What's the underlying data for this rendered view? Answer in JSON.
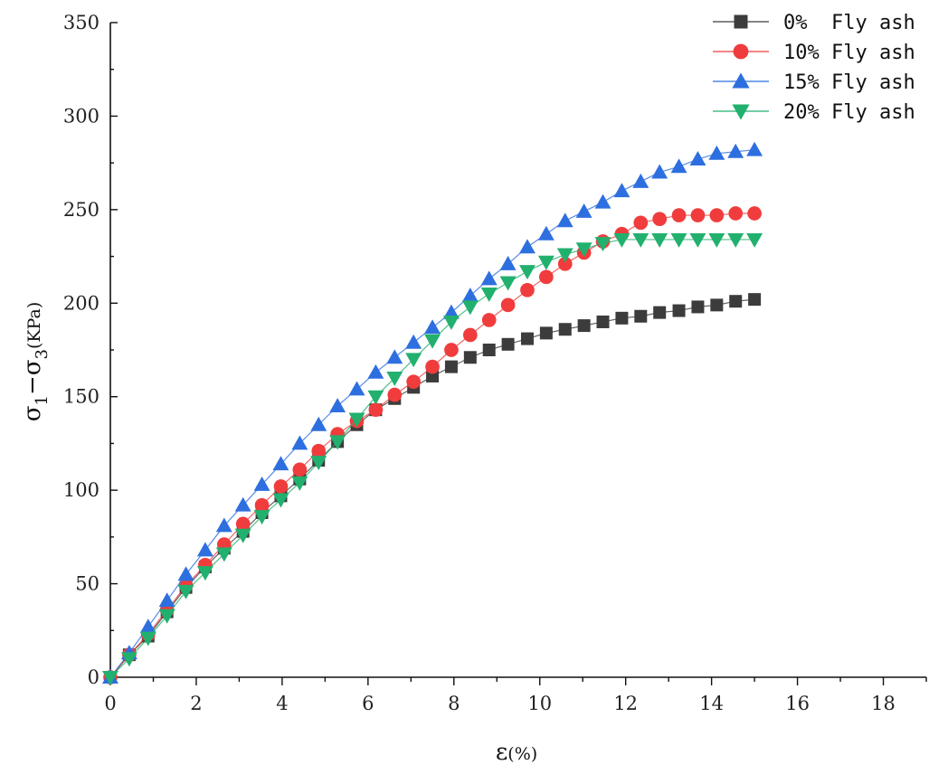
{
  "chart_data": {
    "type": "line",
    "title": "",
    "xlabel": "ε(%)",
    "ylabel": "σ1−σ3(KPa)",
    "ylabel_parts": {
      "sigma1": "σ",
      "sub1": "1",
      "dash": "−",
      "sigma3": "σ",
      "sub3": "3",
      "unit": "(KPa)"
    },
    "xlabel_parts": {
      "eps": "ε",
      "unit": "(%)"
    },
    "xlim": [
      0,
      19
    ],
    "ylim": [
      0,
      350
    ],
    "xticks": [
      0,
      2,
      4,
      6,
      8,
      10,
      12,
      14,
      16,
      18
    ],
    "yticks": [
      0,
      50,
      100,
      150,
      200,
      250,
      300,
      350
    ],
    "xtick_labels": [
      "0",
      "2",
      "4",
      "6",
      "8",
      "10",
      "12",
      "14",
      "16",
      "18"
    ],
    "ytick_labels": [
      "0",
      "50",
      "100",
      "150",
      "200",
      "250",
      "300",
      "350"
    ],
    "legend_position": "top-right",
    "grid": false,
    "x": [
      0,
      0.44,
      0.88,
      1.32,
      1.76,
      2.21,
      2.65,
      3.09,
      3.53,
      3.97,
      4.41,
      4.85,
      5.29,
      5.74,
      6.18,
      6.62,
      7.06,
      7.5,
      7.94,
      8.38,
      8.82,
      9.26,
      9.71,
      10.15,
      10.59,
      11.03,
      11.47,
      11.91,
      12.35,
      12.79,
      13.24,
      13.68,
      14.12,
      14.56,
      15
    ],
    "series": [
      {
        "name": "0%  Fly ash",
        "color": "#3c3c3c",
        "marker": "square",
        "values": [
          0,
          12,
          22,
          35,
          48,
          59,
          69,
          78,
          88,
          97,
          106,
          116,
          126,
          135,
          143,
          149,
          155,
          161,
          166,
          171,
          175,
          178,
          181,
          184,
          186,
          188,
          190,
          192,
          193,
          195,
          196,
          198,
          199,
          201,
          202
        ]
      },
      {
        "name": "10% Fly ash",
        "color": "#f03c3c",
        "marker": "circle",
        "values": [
          0,
          12,
          23,
          36,
          49,
          60,
          71,
          82,
          92,
          102,
          111,
          121,
          130,
          137,
          143,
          151,
          158,
          166,
          175,
          183,
          191,
          199,
          207,
          214,
          221,
          227,
          233,
          237,
          243,
          245,
          247,
          247,
          247,
          248,
          248
        ]
      },
      {
        "name": "15% Fly ash",
        "color": "#2e6fe0",
        "marker": "triangle-up",
        "values": [
          0,
          13,
          27,
          41,
          55,
          68,
          81,
          92,
          103,
          114,
          125,
          135,
          145,
          154,
          163,
          171,
          179,
          187,
          195,
          204,
          213,
          221,
          230,
          237,
          244,
          249,
          254,
          260,
          265,
          270,
          273,
          277,
          280,
          281,
          282
        ]
      },
      {
        "name": "20% Fly ash",
        "color": "#22b06e",
        "marker": "triangle-down",
        "values": [
          0,
          10,
          21,
          33,
          46,
          56,
          66,
          76,
          86,
          95,
          104,
          115,
          126,
          138,
          150,
          160,
          170,
          180,
          190,
          198,
          205,
          211,
          217,
          222,
          226,
          229,
          232,
          234,
          234,
          234,
          234,
          234,
          234,
          234,
          234
        ]
      }
    ]
  }
}
